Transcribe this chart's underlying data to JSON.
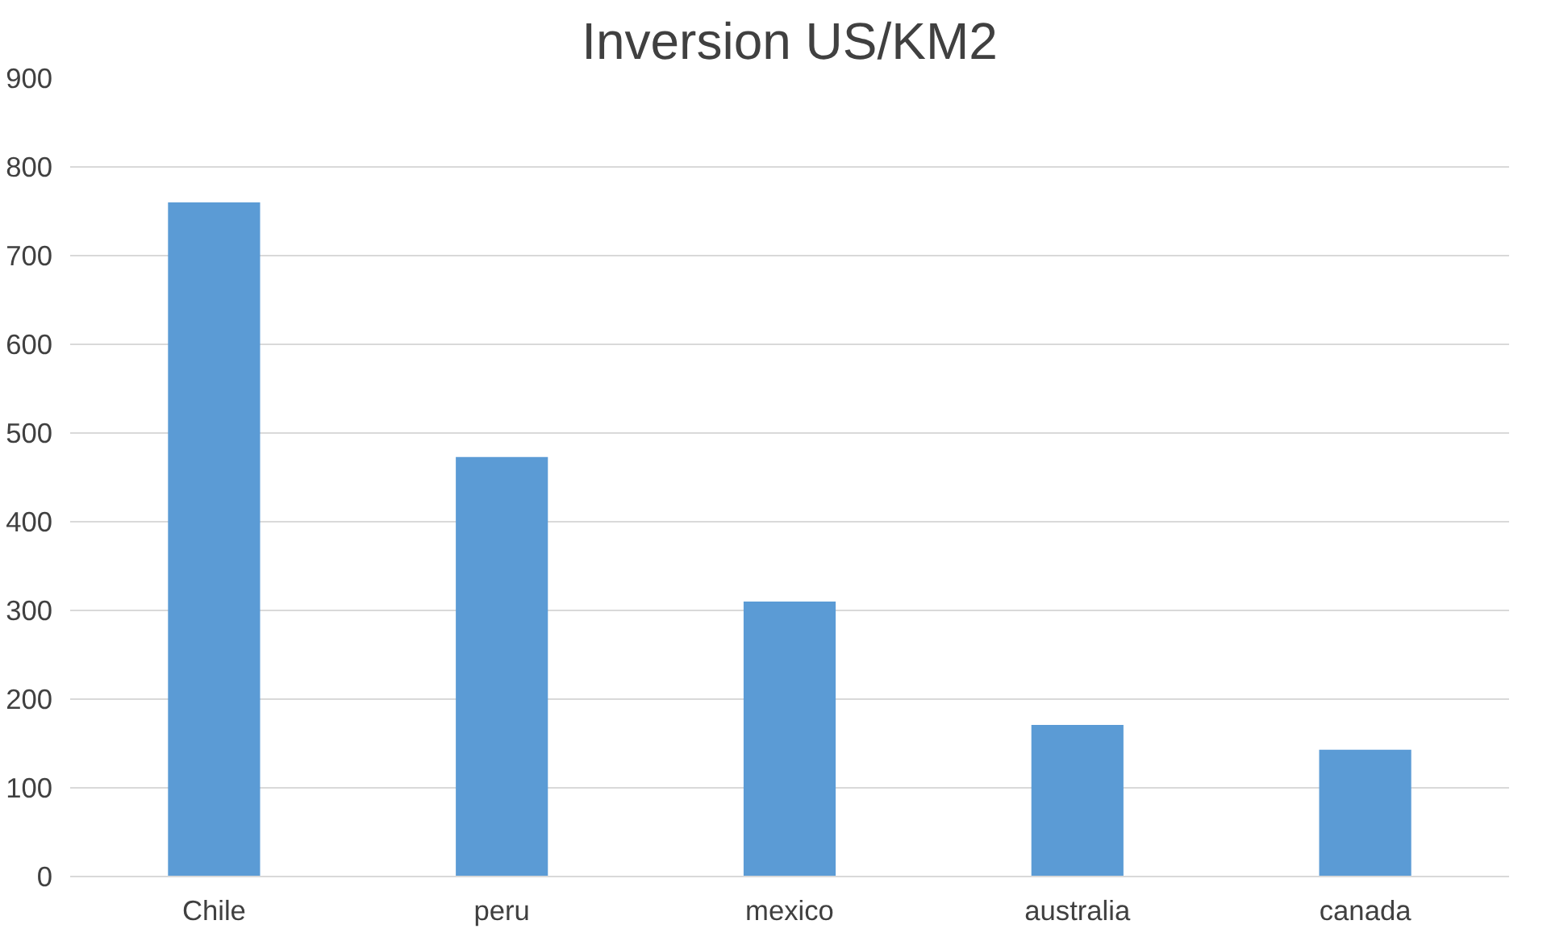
{
  "chart_data": {
    "type": "bar",
    "title": "Inversion US/KM2",
    "categories": [
      "Chile",
      "peru",
      "mexico",
      "australia",
      "canada"
    ],
    "values": [
      760,
      473,
      310,
      171,
      143
    ],
    "color": "#5b9bd5",
    "ylim": [
      0,
      900
    ],
    "yticks": [
      0,
      100,
      200,
      300,
      400,
      500,
      600,
      700,
      800,
      900
    ],
    "grid": "y"
  }
}
